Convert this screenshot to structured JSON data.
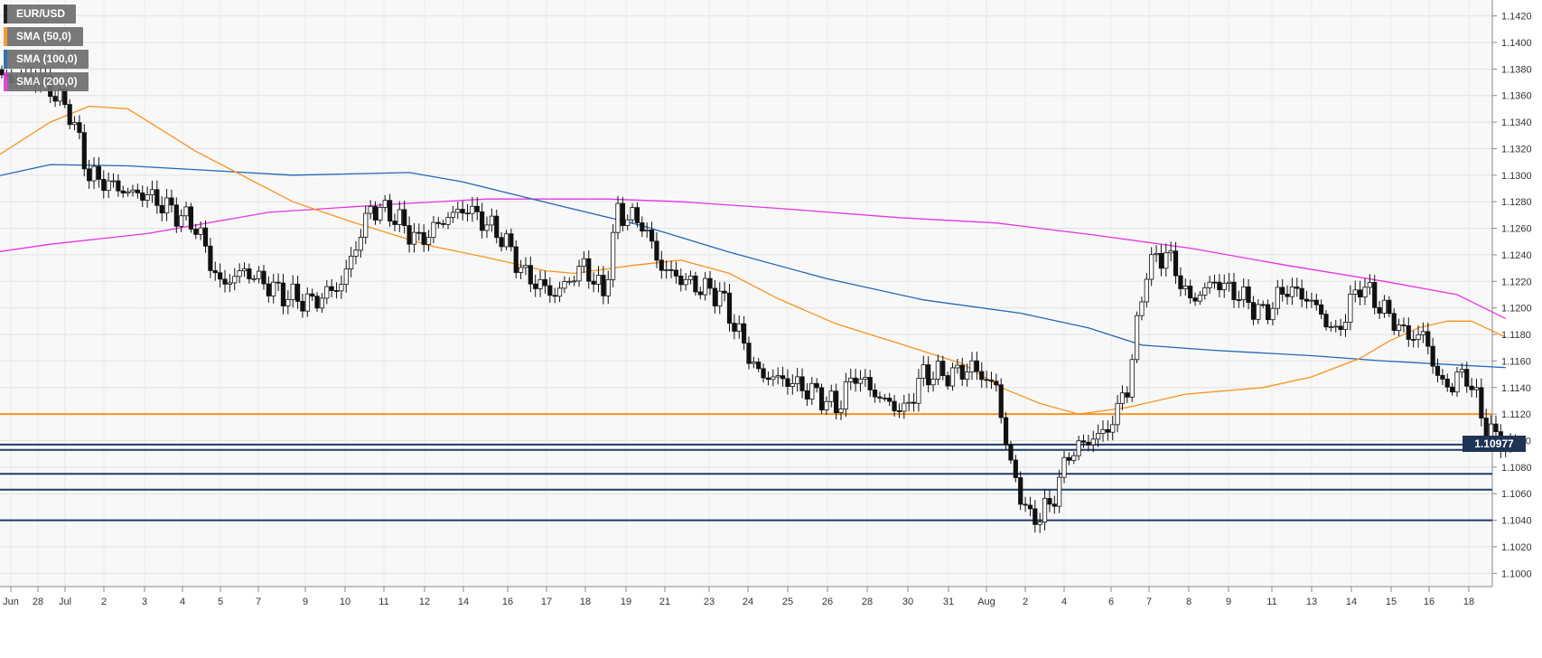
{
  "legend": {
    "symbol": "EUR/USD",
    "sma50": "SMA (50,0)",
    "sma100": "SMA (100,0)",
    "sma200": "SMA (200,0)"
  },
  "current_price_label": "1.10977",
  "colors": {
    "background": "#f8f8f8",
    "grid": "#e2e2e2",
    "sma50": "#f7931e",
    "sma100": "#2166b5",
    "sma200": "#e433e4",
    "resistance": "#f7931e",
    "support": "#1f3c6b",
    "candle_up_fill": "#ffffff",
    "candle_down_fill": "#111111",
    "price_tag": "#1f3355"
  },
  "chart_data": {
    "type": "candlestick",
    "title": "EUR/USD",
    "ylim": [
      1.099,
      1.1432
    ],
    "y_ticks": [
      "1.1000",
      "1.1020",
      "1.1040",
      "1.1060",
      "1.1080",
      "1.1100",
      "1.1120",
      "1.1140",
      "1.1160",
      "1.1180",
      "1.1200",
      "1.1220",
      "1.1240",
      "1.1260",
      "1.1280",
      "1.1300",
      "1.1320",
      "1.1340",
      "1.1360",
      "1.1380",
      "1.1400",
      "1.1420"
    ],
    "x_ticks": [
      "Jun",
      "28",
      "Jul",
      "2",
      "3",
      "4",
      "5",
      "7",
      "9",
      "10",
      "11",
      "12",
      "14",
      "16",
      "17",
      "18",
      "19",
      "21",
      "23",
      "24",
      "25",
      "26",
      "28",
      "30",
      "31",
      "Aug",
      "2",
      "4",
      "6",
      "7",
      "8",
      "9",
      "11",
      "13",
      "14",
      "15",
      "16",
      "18"
    ],
    "horizontal_levels": [
      {
        "name": "resistance",
        "value": 1.112,
        "color": "#f7931e"
      },
      {
        "name": "support-1",
        "value": 1.1097,
        "color": "#1f3c6b"
      },
      {
        "name": "support-2",
        "value": 1.1093,
        "color": "#1f3c6b"
      },
      {
        "name": "support-3",
        "value": 1.1075,
        "color": "#1f3c6b"
      },
      {
        "name": "support-4",
        "value": 1.1063,
        "color": "#1f3c6b"
      },
      {
        "name": "support-5",
        "value": 1.104,
        "color": "#1f3c6b"
      }
    ],
    "anchors": [
      {
        "i": 0,
        "p": 1.1372
      },
      {
        "i": 8,
        "p": 1.1373
      },
      {
        "i": 14,
        "p": 1.1348
      },
      {
        "i": 18,
        "p": 1.13
      },
      {
        "i": 26,
        "p": 1.1287
      },
      {
        "i": 30,
        "p": 1.1285
      },
      {
        "i": 40,
        "p": 1.1262
      },
      {
        "i": 45,
        "p": 1.1217
      },
      {
        "i": 50,
        "p": 1.1228
      },
      {
        "i": 58,
        "p": 1.121
      },
      {
        "i": 64,
        "p": 1.1204
      },
      {
        "i": 70,
        "p": 1.1218
      },
      {
        "i": 76,
        "p": 1.1275
      },
      {
        "i": 80,
        "p": 1.1272
      },
      {
        "i": 86,
        "p": 1.125
      },
      {
        "i": 92,
        "p": 1.1269
      },
      {
        "i": 96,
        "p": 1.1275
      },
      {
        "i": 103,
        "p": 1.1254
      },
      {
        "i": 108,
        "p": 1.1224
      },
      {
        "i": 114,
        "p": 1.121
      },
      {
        "i": 120,
        "p": 1.1232
      },
      {
        "i": 124,
        "p": 1.121
      },
      {
        "i": 127,
        "p": 1.1272
      },
      {
        "i": 132,
        "p": 1.1264
      },
      {
        "i": 136,
        "p": 1.123
      },
      {
        "i": 142,
        "p": 1.1218
      },
      {
        "i": 148,
        "p": 1.121
      },
      {
        "i": 152,
        "p": 1.118
      },
      {
        "i": 156,
        "p": 1.115
      },
      {
        "i": 162,
        "p": 1.1145
      },
      {
        "i": 168,
        "p": 1.1135
      },
      {
        "i": 172,
        "p": 1.1125
      },
      {
        "i": 176,
        "p": 1.115
      },
      {
        "i": 181,
        "p": 1.1132
      },
      {
        "i": 186,
        "p": 1.1122
      },
      {
        "i": 190,
        "p": 1.115
      },
      {
        "i": 196,
        "p": 1.115
      },
      {
        "i": 200,
        "p": 1.1155
      },
      {
        "i": 205,
        "p": 1.114
      },
      {
        "i": 208,
        "p": 1.108
      },
      {
        "i": 212,
        "p": 1.104
      },
      {
        "i": 216,
        "p": 1.105
      },
      {
        "i": 220,
        "p": 1.109
      },
      {
        "i": 224,
        "p": 1.11
      },
      {
        "i": 228,
        "p": 1.1108
      },
      {
        "i": 232,
        "p": 1.114
      },
      {
        "i": 236,
        "p": 1.123
      },
      {
        "i": 240,
        "p": 1.1242
      },
      {
        "i": 245,
        "p": 1.1205
      },
      {
        "i": 250,
        "p": 1.122
      },
      {
        "i": 255,
        "p": 1.121
      },
      {
        "i": 260,
        "p": 1.1195
      },
      {
        "i": 265,
        "p": 1.1215
      },
      {
        "i": 270,
        "p": 1.1205
      },
      {
        "i": 275,
        "p": 1.118
      },
      {
        "i": 280,
        "p": 1.1218
      },
      {
        "i": 285,
        "p": 1.1198
      },
      {
        "i": 290,
        "p": 1.1178
      },
      {
        "i": 293,
        "p": 1.118
      },
      {
        "i": 297,
        "p": 1.114
      },
      {
        "i": 302,
        "p": 1.115
      },
      {
        "i": 306,
        "p": 1.111
      },
      {
        "i": 310,
        "p": 1.1095
      },
      {
        "i": 312,
        "p": 1.1098
      }
    ],
    "sma50_points": [
      [
        -5,
        1.1305
      ],
      [
        10,
        1.134
      ],
      [
        18,
        1.1352
      ],
      [
        26,
        1.135
      ],
      [
        40,
        1.1318
      ],
      [
        60,
        1.128
      ],
      [
        72,
        1.1265
      ],
      [
        88,
        1.1247
      ],
      [
        100,
        1.1238
      ],
      [
        112,
        1.1228
      ],
      [
        118,
        1.1226
      ],
      [
        130,
        1.1232
      ],
      [
        140,
        1.1236
      ],
      [
        150,
        1.1226
      ],
      [
        160,
        1.1207
      ],
      [
        172,
        1.1188
      ],
      [
        186,
        1.1172
      ],
      [
        198,
        1.1158
      ],
      [
        206,
        1.114
      ],
      [
        214,
        1.1128
      ],
      [
        222,
        1.112
      ],
      [
        232,
        1.1125
      ],
      [
        244,
        1.1135
      ],
      [
        260,
        1.114
      ],
      [
        270,
        1.1148
      ],
      [
        280,
        1.1162
      ],
      [
        286,
        1.1175
      ],
      [
        292,
        1.1185
      ],
      [
        298,
        1.119
      ],
      [
        303,
        1.119
      ],
      [
        310,
        1.1178
      ]
    ],
    "sma100_points": [
      [
        -5,
        1.1296
      ],
      [
        10,
        1.1308
      ],
      [
        26,
        1.1307
      ],
      [
        60,
        1.13
      ],
      [
        84,
        1.1302
      ],
      [
        95,
        1.1295
      ],
      [
        115,
        1.1277
      ],
      [
        132,
        1.1262
      ],
      [
        150,
        1.1242
      ],
      [
        170,
        1.1222
      ],
      [
        190,
        1.1206
      ],
      [
        210,
        1.1196
      ],
      [
        224,
        1.1185
      ],
      [
        235,
        1.1172
      ],
      [
        250,
        1.1168
      ],
      [
        270,
        1.1164
      ],
      [
        285,
        1.116
      ],
      [
        300,
        1.1157
      ],
      [
        310,
        1.1155
      ]
    ],
    "sma200_points": [
      [
        -5,
        1.124
      ],
      [
        10,
        1.1248
      ],
      [
        30,
        1.1256
      ],
      [
        55,
        1.1272
      ],
      [
        80,
        1.1278
      ],
      [
        100,
        1.1282
      ],
      [
        125,
        1.1282
      ],
      [
        140,
        1.128
      ],
      [
        160,
        1.1275
      ],
      [
        185,
        1.1268
      ],
      [
        205,
        1.1264
      ],
      [
        225,
        1.1255
      ],
      [
        245,
        1.1245
      ],
      [
        265,
        1.1232
      ],
      [
        285,
        1.122
      ],
      [
        300,
        1.121
      ],
      [
        310,
        1.1192
      ]
    ]
  }
}
